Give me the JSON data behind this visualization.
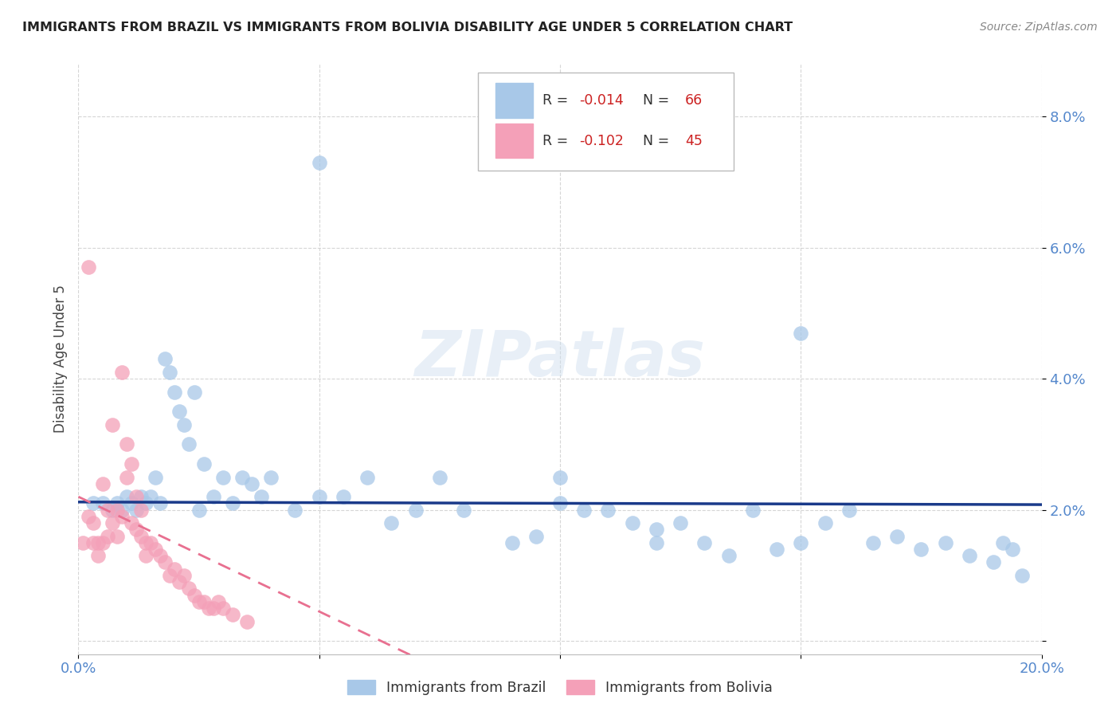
{
  "title": "IMMIGRANTS FROM BRAZIL VS IMMIGRANTS FROM BOLIVIA DISABILITY AGE UNDER 5 CORRELATION CHART",
  "source": "Source: ZipAtlas.com",
  "ylabel": "Disability Age Under 5",
  "xlim": [
    0.0,
    0.2
  ],
  "ylim": [
    -0.002,
    0.088
  ],
  "yticks": [
    0.0,
    0.02,
    0.04,
    0.06,
    0.08
  ],
  "ytick_labels": [
    "",
    "2.0%",
    "4.0%",
    "6.0%",
    "8.0%"
  ],
  "xticks": [
    0.0,
    0.05,
    0.1,
    0.15,
    0.2
  ],
  "xtick_labels": [
    "0.0%",
    "",
    "",
    "",
    "20.0%"
  ],
  "brazil_color": "#a8c8e8",
  "bolivia_color": "#f4a0b8",
  "trend_brazil_color": "#1a3a8a",
  "trend_bolivia_color": "#e87090",
  "brazil_x": [
    0.003,
    0.005,
    0.007,
    0.008,
    0.009,
    0.01,
    0.011,
    0.012,
    0.013,
    0.014,
    0.015,
    0.016,
    0.017,
    0.018,
    0.019,
    0.02,
    0.021,
    0.022,
    0.023,
    0.024,
    0.025,
    0.026,
    0.028,
    0.03,
    0.032,
    0.034,
    0.036,
    0.038,
    0.04,
    0.045,
    0.05,
    0.055,
    0.06,
    0.065,
    0.07,
    0.075,
    0.08,
    0.09,
    0.095,
    0.1,
    0.105,
    0.11,
    0.115,
    0.12,
    0.125,
    0.13,
    0.135,
    0.14,
    0.145,
    0.15,
    0.155,
    0.16,
    0.165,
    0.17,
    0.175,
    0.18,
    0.185,
    0.19,
    0.192,
    0.194,
    0.196,
    0.15,
    0.12,
    0.1,
    0.085,
    0.05
  ],
  "brazil_y": [
    0.021,
    0.021,
    0.02,
    0.021,
    0.02,
    0.022,
    0.021,
    0.02,
    0.022,
    0.021,
    0.022,
    0.025,
    0.021,
    0.043,
    0.041,
    0.038,
    0.035,
    0.033,
    0.03,
    0.038,
    0.02,
    0.027,
    0.022,
    0.025,
    0.021,
    0.025,
    0.024,
    0.022,
    0.025,
    0.02,
    0.022,
    0.022,
    0.025,
    0.018,
    0.02,
    0.025,
    0.02,
    0.015,
    0.016,
    0.025,
    0.02,
    0.02,
    0.018,
    0.015,
    0.018,
    0.015,
    0.013,
    0.02,
    0.014,
    0.015,
    0.018,
    0.02,
    0.015,
    0.016,
    0.014,
    0.015,
    0.013,
    0.012,
    0.015,
    0.014,
    0.01,
    0.047,
    0.017,
    0.021,
    0.076,
    0.073
  ],
  "bolivia_x": [
    0.001,
    0.002,
    0.002,
    0.003,
    0.003,
    0.004,
    0.004,
    0.005,
    0.005,
    0.006,
    0.006,
    0.007,
    0.007,
    0.008,
    0.008,
    0.009,
    0.009,
    0.01,
    0.01,
    0.011,
    0.011,
    0.012,
    0.012,
    0.013,
    0.013,
    0.014,
    0.014,
    0.015,
    0.016,
    0.017,
    0.018,
    0.019,
    0.02,
    0.021,
    0.022,
    0.023,
    0.024,
    0.025,
    0.026,
    0.027,
    0.028,
    0.029,
    0.03,
    0.032,
    0.035
  ],
  "bolivia_y": [
    0.015,
    0.057,
    0.019,
    0.018,
    0.015,
    0.015,
    0.013,
    0.015,
    0.024,
    0.02,
    0.016,
    0.033,
    0.018,
    0.02,
    0.016,
    0.041,
    0.019,
    0.03,
    0.025,
    0.027,
    0.018,
    0.022,
    0.017,
    0.02,
    0.016,
    0.013,
    0.015,
    0.015,
    0.014,
    0.013,
    0.012,
    0.01,
    0.011,
    0.009,
    0.01,
    0.008,
    0.007,
    0.006,
    0.006,
    0.005,
    0.005,
    0.006,
    0.005,
    0.004,
    0.003
  ],
  "watermark_text": "ZIPatlas",
  "background_color": "#ffffff",
  "grid_color": "#cccccc",
  "trend_brazil_intercept": 0.0212,
  "trend_brazil_slope": -0.002,
  "trend_bolivia_intercept": 0.022,
  "trend_bolivia_slope": -0.35
}
